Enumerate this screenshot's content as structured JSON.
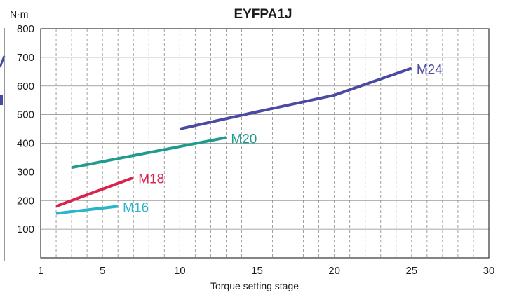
{
  "chart_data": {
    "type": "line",
    "title": "EYFPA1J",
    "unit_label": "N·m",
    "xlabel": "Torque setting stage",
    "ylabel": "",
    "xlim": [
      1,
      30
    ],
    "ylim": [
      0,
      800
    ],
    "x_ticks": [
      1,
      5,
      10,
      15,
      20,
      25,
      30
    ],
    "y_ticks": [
      100,
      200,
      300,
      400,
      500,
      600,
      700,
      800
    ],
    "grid": true,
    "series": [
      {
        "name": "M24",
        "color": "#4a4aa2",
        "points": [
          [
            10,
            450
          ],
          [
            15,
            510
          ],
          [
            20,
            568
          ],
          [
            25,
            662
          ]
        ]
      },
      {
        "name": "M20",
        "color": "#1f9b8e",
        "points": [
          [
            3,
            315
          ],
          [
            13,
            420
          ]
        ]
      },
      {
        "name": "M18",
        "color": "#d9234e",
        "points": [
          [
            2,
            180
          ],
          [
            7,
            280
          ]
        ]
      },
      {
        "name": "M16",
        "color": "#29b3cc",
        "points": [
          [
            2,
            155
          ],
          [
            6,
            180
          ]
        ]
      }
    ]
  }
}
